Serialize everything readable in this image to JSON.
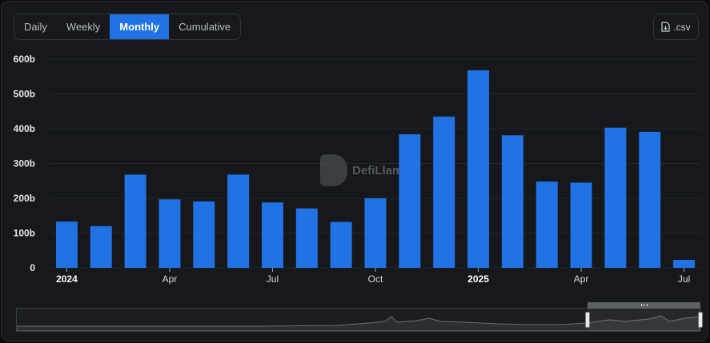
{
  "toolbar": {
    "tabs": [
      "Daily",
      "Weekly",
      "Monthly",
      "Cumulative"
    ],
    "active_tab": "Monthly",
    "csv_label": ".csv"
  },
  "watermark": {
    "text": "DefiLlama"
  },
  "colors": {
    "bar": "#2172e5",
    "grid": "#23262b",
    "text": "#e6e7ea"
  },
  "chart_data": {
    "type": "bar",
    "categories": [
      "2024-01",
      "2024-02",
      "2024-03",
      "2024-04",
      "2024-05",
      "2024-06",
      "2024-07",
      "2024-08",
      "2024-09",
      "2024-10",
      "2024-11",
      "2024-12",
      "2025-01",
      "2025-02",
      "2025-03",
      "2025-04",
      "2025-05",
      "2025-06",
      "2025-07"
    ],
    "values": [
      133,
      120,
      268,
      197,
      191,
      268,
      188,
      171,
      132,
      200,
      384,
      435,
      568,
      381,
      248,
      245,
      403,
      391,
      23
    ],
    "value_unit": "b",
    "ylim": [
      0,
      600
    ],
    "yticks": [
      {
        "value": 0,
        "label": "0"
      },
      {
        "value": 100,
        "label": "100b"
      },
      {
        "value": 200,
        "label": "200b"
      },
      {
        "value": 300,
        "label": "300b"
      },
      {
        "value": 400,
        "label": "400b"
      },
      {
        "value": 500,
        "label": "500b"
      },
      {
        "value": 600,
        "label": "600b"
      }
    ],
    "xticks": [
      {
        "index": 0,
        "label": "2024",
        "bold": true
      },
      {
        "index": 3,
        "label": "Apr",
        "bold": false
      },
      {
        "index": 6,
        "label": "Jul",
        "bold": false
      },
      {
        "index": 9,
        "label": "Oct",
        "bold": false
      },
      {
        "index": 12,
        "label": "2025",
        "bold": true
      },
      {
        "index": 15,
        "label": "Apr",
        "bold": false
      },
      {
        "index": 18,
        "label": "Jul",
        "bold": false
      }
    ],
    "grid": true,
    "legend": "none"
  }
}
